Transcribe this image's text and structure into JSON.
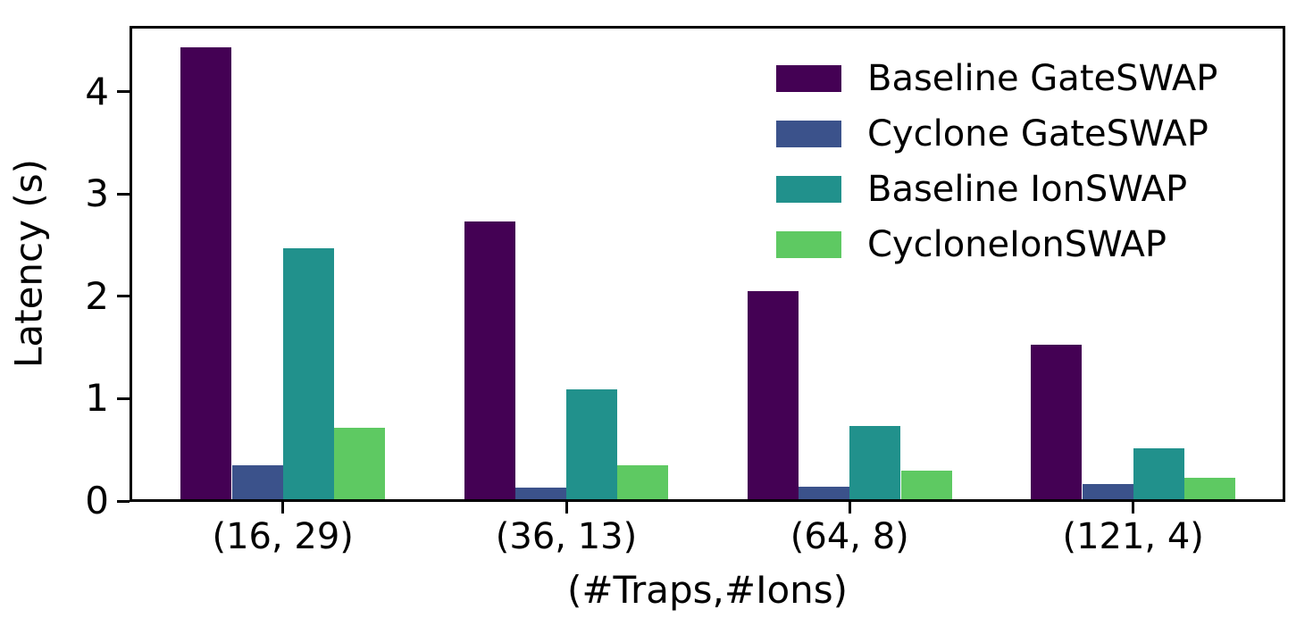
{
  "figure": {
    "background": "#ffffff",
    "frame_color": "#000000"
  },
  "chart_data": {
    "type": "bar",
    "title": "",
    "xlabel": "(#Traps,#Ions)",
    "ylabel": "Latency (s)",
    "categories": [
      "(16, 29)",
      "(36, 13)",
      "(64, 8)",
      "(121, 4)"
    ],
    "series": [
      {
        "name": "Baseline GateSWAP",
        "color": "#440154",
        "values": [
          4.42,
          2.71,
          2.03,
          1.51
        ]
      },
      {
        "name": "Cyclone GateSWAP",
        "color": "#3b528b",
        "values": [
          0.33,
          0.11,
          0.12,
          0.15
        ]
      },
      {
        "name": "Baseline IonSWAP",
        "color": "#21918c",
        "values": [
          2.45,
          1.07,
          0.72,
          0.5
        ]
      },
      {
        "name": "CycloneIonSWAP",
        "color": "#5ec962",
        "values": [
          0.7,
          0.33,
          0.28,
          0.21
        ]
      }
    ],
    "yticks": [
      0,
      1,
      2,
      3,
      4
    ],
    "ylim": [
      0,
      4.65
    ],
    "grid": false,
    "legend_position": "upper-right"
  }
}
